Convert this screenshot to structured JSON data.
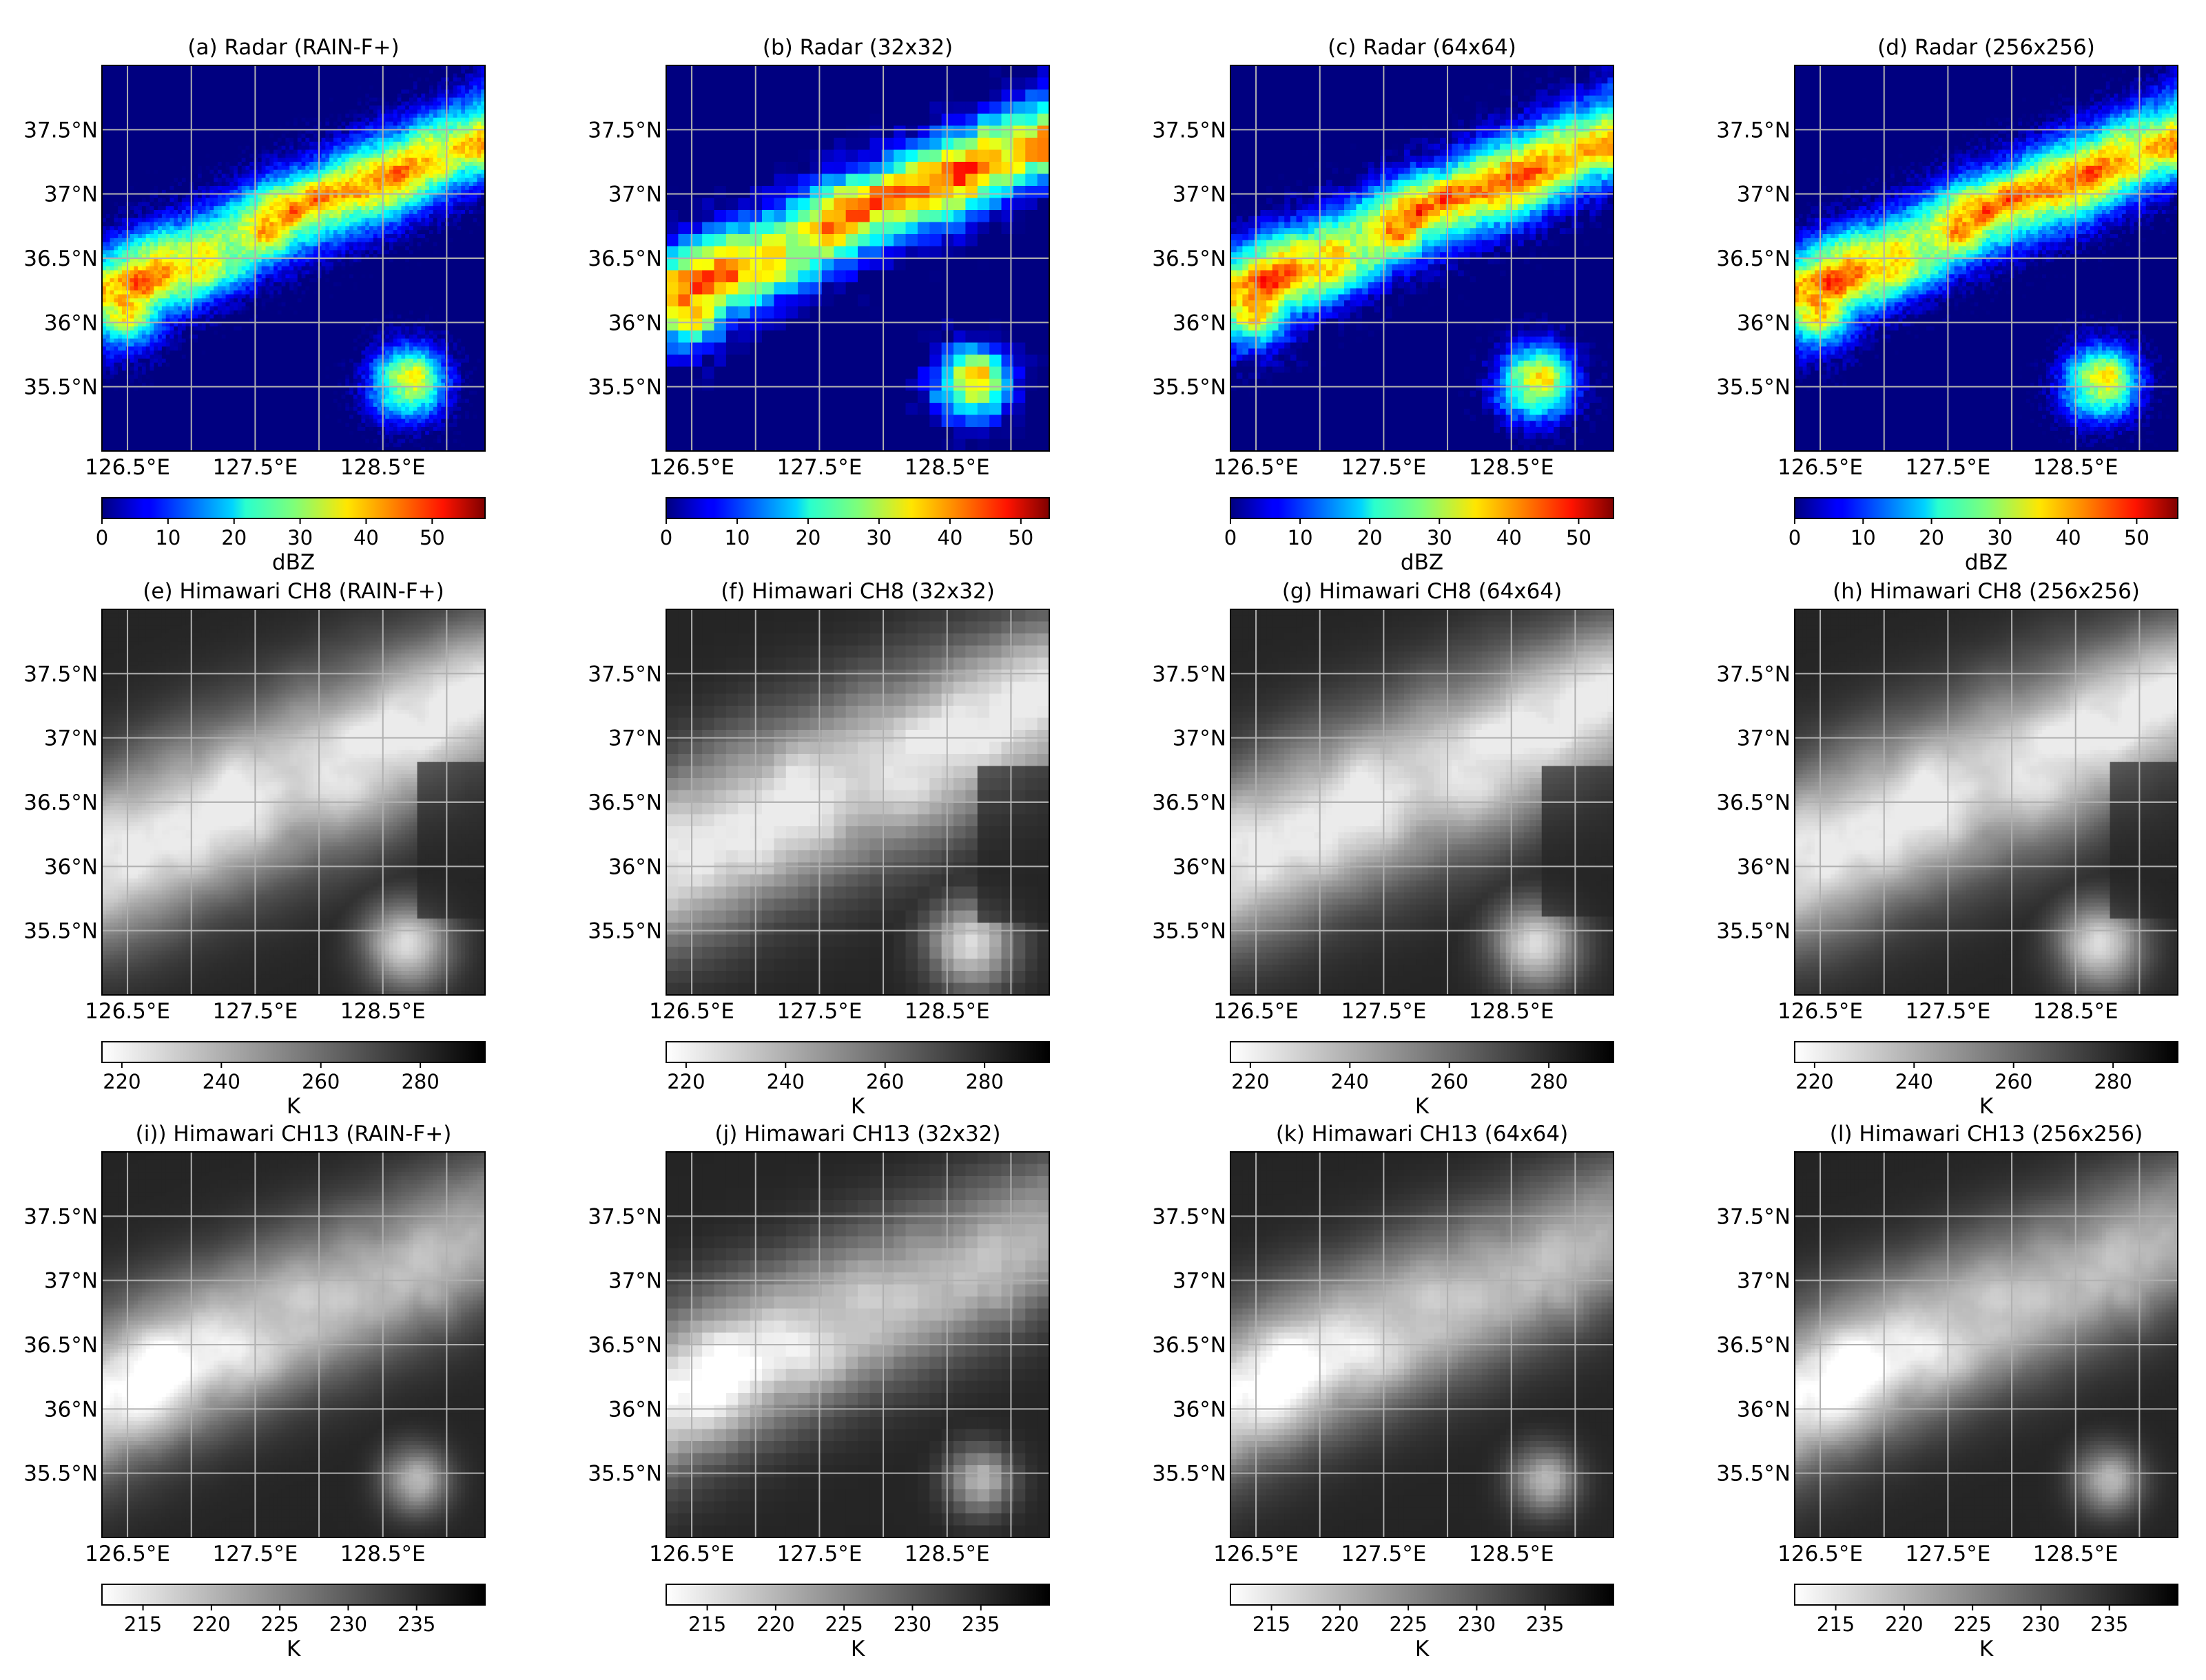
{
  "grid_label": "lat-lon",
  "lat_ticks": [
    "37.5°N",
    "37°N",
    "36.5°N",
    "36°N",
    "35.5°N"
  ],
  "lon_ticks": [
    "126.5°E",
    "127.5°E",
    "128.5°E"
  ],
  "colors": {
    "radar_colormap": "jet",
    "ir_colormap": "gray_r",
    "gridline": "#b0b0b0",
    "radar_background": "#00007f"
  },
  "chart_data": [
    {
      "type": "heatmap",
      "title": "(a) Radar (RAIN-F+)",
      "field": "radar",
      "resolution": "full",
      "colorbar": {
        "label": "dBZ",
        "ticks": [
          "0",
          "10",
          "20",
          "30",
          "40",
          "50"
        ],
        "range": [
          0,
          58
        ],
        "colormap": "jet"
      },
      "lon_range": [
        126.3,
        129.3
      ],
      "lat_range": [
        35.0,
        38.0
      ]
    },
    {
      "type": "heatmap",
      "title": "(b) Radar (32x32)",
      "field": "radar",
      "resolution": 32,
      "colorbar": {
        "label": "",
        "ticks": [
          "0",
          "10",
          "20",
          "30",
          "40",
          "50"
        ],
        "range": [
          0,
          54
        ],
        "colormap": "jet"
      },
      "lon_range": [
        126.3,
        129.3
      ],
      "lat_range": [
        35.0,
        38.0
      ]
    },
    {
      "type": "heatmap",
      "title": "(c) Radar (64x64)",
      "field": "radar",
      "resolution": 64,
      "colorbar": {
        "label": "dBZ",
        "ticks": [
          "0",
          "10",
          "20",
          "30",
          "40",
          "50"
        ],
        "range": [
          0,
          55
        ],
        "colormap": "jet"
      },
      "lon_range": [
        126.3,
        129.3
      ],
      "lat_range": [
        35.0,
        38.0
      ]
    },
    {
      "type": "heatmap",
      "title": "(d) Radar (256x256)",
      "field": "radar",
      "resolution": 256,
      "colorbar": {
        "label": "dBZ",
        "ticks": [
          "0",
          "10",
          "20",
          "30",
          "40",
          "50"
        ],
        "range": [
          0,
          56
        ],
        "colormap": "jet"
      },
      "lon_range": [
        126.3,
        129.3
      ],
      "lat_range": [
        35.0,
        38.0
      ]
    },
    {
      "type": "heatmap",
      "title": "(e) Himawari CH8 (RAIN-F+)",
      "field": "ch8",
      "resolution": "full",
      "colorbar": {
        "label": "K",
        "ticks": [
          "220",
          "240",
          "260",
          "280"
        ],
        "range": [
          216,
          293
        ],
        "colormap": "gray_r"
      },
      "lon_range": [
        126.3,
        129.3
      ],
      "lat_range": [
        35.0,
        38.0
      ]
    },
    {
      "type": "heatmap",
      "title": "(f) Himawari CH8 (32x32)",
      "field": "ch8",
      "resolution": 32,
      "colorbar": {
        "label": "K",
        "ticks": [
          "220",
          "240",
          "260",
          "280"
        ],
        "range": [
          216,
          293
        ],
        "colormap": "gray_r"
      },
      "lon_range": [
        126.3,
        129.3
      ],
      "lat_range": [
        35.0,
        38.0
      ]
    },
    {
      "type": "heatmap",
      "title": "(g) Himawari CH8 (64x64)",
      "field": "ch8",
      "resolution": 64,
      "colorbar": {
        "label": "K",
        "ticks": [
          "220",
          "240",
          "260",
          "280"
        ],
        "range": [
          216,
          293
        ],
        "colormap": "gray_r"
      },
      "lon_range": [
        126.3,
        129.3
      ],
      "lat_range": [
        35.0,
        38.0
      ]
    },
    {
      "type": "heatmap",
      "title": "(h) Himawari CH8 (256x256)",
      "field": "ch8",
      "resolution": 256,
      "colorbar": {
        "label": "K",
        "ticks": [
          "220",
          "240",
          "260",
          "280"
        ],
        "range": [
          216,
          293
        ],
        "colormap": "gray_r"
      },
      "lon_range": [
        126.3,
        129.3
      ],
      "lat_range": [
        35.0,
        38.0
      ]
    },
    {
      "type": "heatmap",
      "title": "(i)) Himawari CH13 (RAIN-F+)",
      "field": "ch13",
      "resolution": "full",
      "colorbar": {
        "label": "K",
        "ticks": [
          "215",
          "220",
          "225",
          "230",
          "235"
        ],
        "range": [
          212,
          240
        ],
        "colormap": "gray_r"
      },
      "lon_range": [
        126.3,
        129.3
      ],
      "lat_range": [
        35.0,
        38.0
      ]
    },
    {
      "type": "heatmap",
      "title": "(j) Himawari CH13 (32x32)",
      "field": "ch13",
      "resolution": 32,
      "colorbar": {
        "label": "K",
        "ticks": [
          "215",
          "220",
          "225",
          "230",
          "235"
        ],
        "range": [
          212,
          240
        ],
        "colormap": "gray_r"
      },
      "lon_range": [
        126.3,
        129.3
      ],
      "lat_range": [
        35.0,
        38.0
      ]
    },
    {
      "type": "heatmap",
      "title": "(k) Himawari CH13 (64x64)",
      "field": "ch13",
      "resolution": 64,
      "colorbar": {
        "label": "K",
        "ticks": [
          "215",
          "220",
          "225",
          "230",
          "235"
        ],
        "range": [
          212,
          240
        ],
        "colormap": "gray_r"
      },
      "lon_range": [
        126.3,
        129.3
      ],
      "lat_range": [
        35.0,
        38.0
      ]
    },
    {
      "type": "heatmap",
      "title": "(l) Himawari CH13 (256x256)",
      "field": "ch13",
      "resolution": 256,
      "colorbar": {
        "label": "K",
        "ticks": [
          "215",
          "220",
          "225",
          "230",
          "235"
        ],
        "range": [
          212,
          240
        ],
        "colormap": "gray_r"
      },
      "lon_range": [
        126.3,
        129.3
      ],
      "lat_range": [
        35.0,
        38.0
      ]
    }
  ]
}
